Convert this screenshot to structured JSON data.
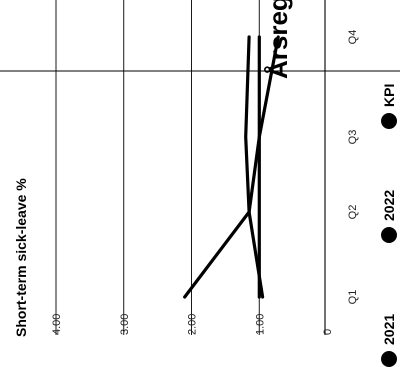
{
  "chart_data": {
    "type": "line",
    "title": "Årsregns",
    "ylabel": "Short-term sick-leave %",
    "categories": [
      "Q1",
      "Q2",
      "Q3",
      "Q4"
    ],
    "ylim": [
      0,
      4
    ],
    "yticks": [
      "0",
      "1.00",
      "2.00",
      "3.00",
      "4.00"
    ],
    "grid": true,
    "series": [
      {
        "name": "2021",
        "values": [
          2.1,
          1.15,
          1.0,
          0.72
        ]
      },
      {
        "name": "2022",
        "values": [
          1.0,
          1.0,
          1.0,
          1.0
        ]
      },
      {
        "name": "KPI",
        "values": [
          0.95,
          1.15,
          1.2,
          1.15
        ]
      }
    ],
    "colors": {
      "line": "#000000",
      "grid": "#000000"
    }
  }
}
